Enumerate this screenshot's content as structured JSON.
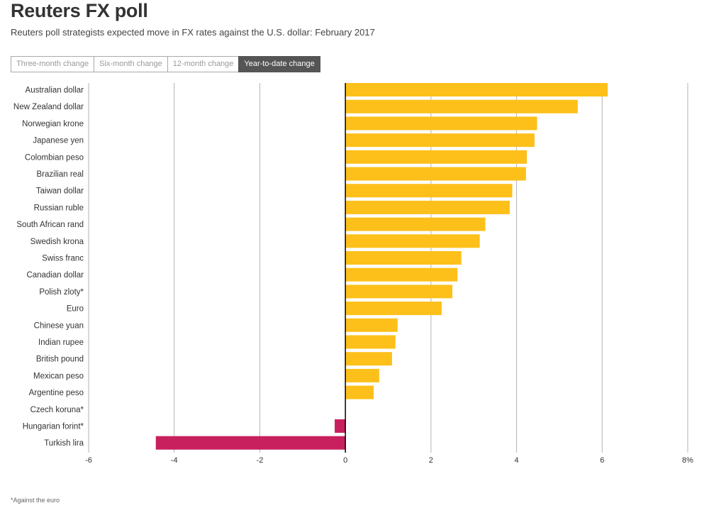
{
  "header": {
    "title": "Reuters FX poll",
    "subtitle": "Reuters poll strategists expected move in FX rates against the U.S. dollar: February 2017"
  },
  "tabs": [
    {
      "label": "Three-month change",
      "active": false
    },
    {
      "label": "Six-month change",
      "active": false
    },
    {
      "label": "12-month change",
      "active": false
    },
    {
      "label": "Year-to-date change",
      "active": true
    }
  ],
  "colors": {
    "positive": "#FDC01A",
    "negative": "#C8205E",
    "grid": "#B3B3B3",
    "zero_line": "#000000",
    "active_tab": "#555555"
  },
  "chart_data": {
    "type": "bar",
    "orientation": "horizontal",
    "categories": [
      "Australian dollar",
      "New Zealand dollar",
      "Norwegian krone",
      "Japanese yen",
      "Colombian peso",
      "Brazilian real",
      "Taiwan dollar",
      "Russian ruble",
      "South African rand",
      "Swedish krona",
      "Swiss franc",
      "Canadian dollar",
      "Polish zloty*",
      "Euro",
      "Chinese yuan",
      "Indian rupee",
      "British pound",
      "Mexican peso",
      "Argentine peso",
      "Czech koruna*",
      "Hungarian forint*",
      "Turkish lira"
    ],
    "values": [
      6.13,
      5.43,
      4.48,
      4.42,
      4.24,
      4.22,
      3.9,
      3.84,
      3.27,
      3.14,
      2.71,
      2.62,
      2.5,
      2.25,
      1.22,
      1.17,
      1.09,
      0.79,
      0.66,
      0.0,
      -0.25,
      -4.43
    ],
    "xlim": [
      -6,
      8
    ],
    "xticks": [
      -6,
      -4,
      -2,
      0,
      2,
      4,
      6,
      8
    ],
    "xtick_labels": [
      "-6",
      "-4",
      "-2",
      "0",
      "2",
      "4",
      "6",
      "8%"
    ],
    "grid": true
  },
  "footnote": "*Against the euro"
}
